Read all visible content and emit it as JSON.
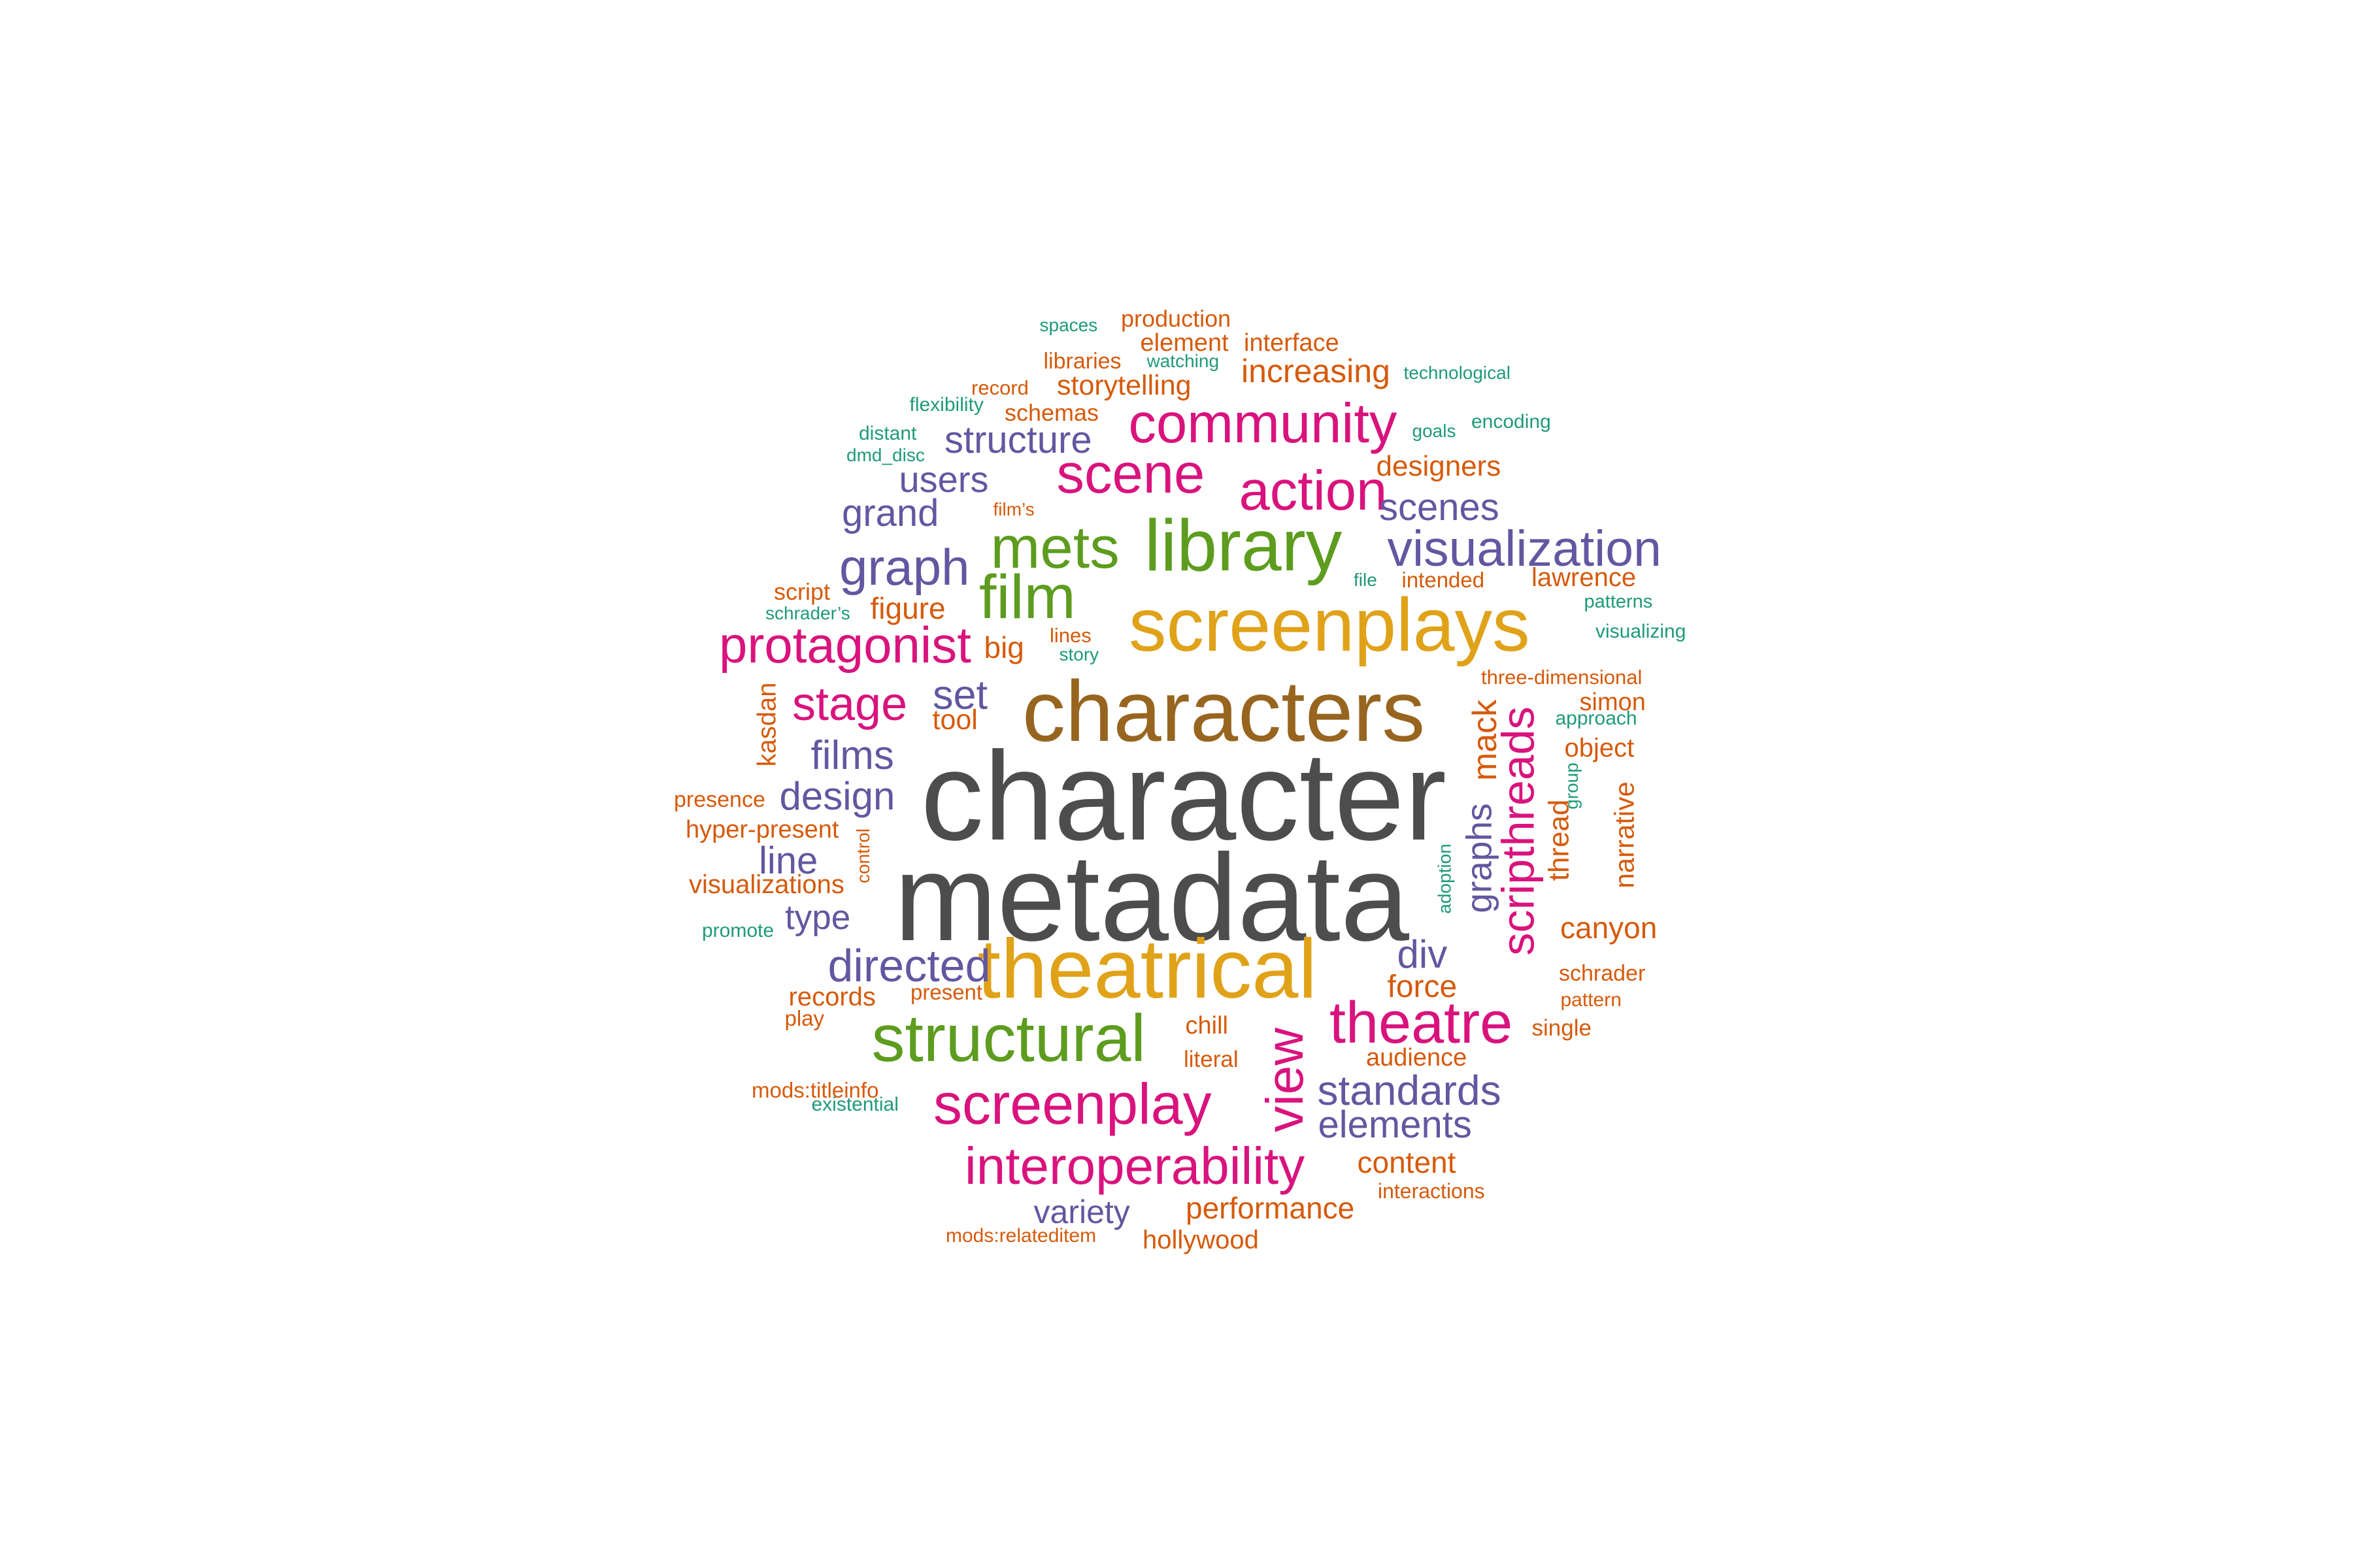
{
  "palette": {
    "gray": "#4d4d4d",
    "brown": "#97651f",
    "gold": "#e0a219",
    "green": "#5d9c1e",
    "magenta": "#d9137d",
    "purple": "#6257a0",
    "orange": "#d65a0b",
    "teal": "#1f9a78"
  },
  "words": [
    {
      "text": "character",
      "color": "gray"
    },
    {
      "text": "metadata",
      "color": "gray"
    },
    {
      "text": "characters",
      "color": "brown"
    },
    {
      "text": "screenplays",
      "color": "gold"
    },
    {
      "text": "theatrical",
      "color": "gold"
    },
    {
      "text": "library",
      "color": "green"
    },
    {
      "text": "mets",
      "color": "green"
    },
    {
      "text": "film",
      "color": "green"
    },
    {
      "text": "structural",
      "color": "green"
    },
    {
      "text": "community",
      "color": "magenta"
    },
    {
      "text": "scene",
      "color": "magenta"
    },
    {
      "text": "action",
      "color": "magenta"
    },
    {
      "text": "protagonist",
      "color": "magenta"
    },
    {
      "text": "stage",
      "color": "magenta"
    },
    {
      "text": "theatre",
      "color": "magenta"
    },
    {
      "text": "screenplay",
      "color": "magenta"
    },
    {
      "text": "interoperability",
      "color": "magenta"
    },
    {
      "text": "view",
      "color": "magenta"
    },
    {
      "text": "scripthreads",
      "color": "magenta"
    },
    {
      "text": "visualization",
      "color": "purple"
    },
    {
      "text": "structure",
      "color": "purple"
    },
    {
      "text": "users",
      "color": "purple"
    },
    {
      "text": "grand",
      "color": "purple"
    },
    {
      "text": "graph",
      "color": "purple"
    },
    {
      "text": "scenes",
      "color": "purple"
    },
    {
      "text": "set",
      "color": "purple"
    },
    {
      "text": "films",
      "color": "purple"
    },
    {
      "text": "design",
      "color": "purple"
    },
    {
      "text": "line",
      "color": "purple"
    },
    {
      "text": "type",
      "color": "purple"
    },
    {
      "text": "directed",
      "color": "purple"
    },
    {
      "text": "div",
      "color": "purple"
    },
    {
      "text": "standards",
      "color": "purple"
    },
    {
      "text": "elements",
      "color": "purple"
    },
    {
      "text": "variety",
      "color": "purple"
    },
    {
      "text": "graphs",
      "color": "purple"
    },
    {
      "text": "production",
      "color": "orange"
    },
    {
      "text": "element",
      "color": "orange"
    },
    {
      "text": "interface",
      "color": "orange"
    },
    {
      "text": "libraries",
      "color": "orange"
    },
    {
      "text": "increasing",
      "color": "orange"
    },
    {
      "text": "record",
      "color": "orange"
    },
    {
      "text": "storytelling",
      "color": "orange"
    },
    {
      "text": "schemas",
      "color": "orange"
    },
    {
      "text": "designers",
      "color": "orange"
    },
    {
      "text": "film’s",
      "color": "orange"
    },
    {
      "text": "intended",
      "color": "orange"
    },
    {
      "text": "lawrence",
      "color": "orange"
    },
    {
      "text": "script",
      "color": "orange"
    },
    {
      "text": "figure",
      "color": "orange"
    },
    {
      "text": "lines",
      "color": "orange"
    },
    {
      "text": "big",
      "color": "orange"
    },
    {
      "text": "three-dimensional",
      "color": "orange"
    },
    {
      "text": "simon",
      "color": "orange"
    },
    {
      "text": "tool",
      "color": "orange"
    },
    {
      "text": "object",
      "color": "orange"
    },
    {
      "text": "presence",
      "color": "orange"
    },
    {
      "text": "hyper-present",
      "color": "orange"
    },
    {
      "text": "visualizations",
      "color": "orange"
    },
    {
      "text": "canyon",
      "color": "orange"
    },
    {
      "text": "force",
      "color": "orange"
    },
    {
      "text": "schrader",
      "color": "orange"
    },
    {
      "text": "records",
      "color": "orange"
    },
    {
      "text": "present",
      "color": "orange"
    },
    {
      "text": "pattern",
      "color": "orange"
    },
    {
      "text": "play",
      "color": "orange"
    },
    {
      "text": "chill",
      "color": "orange"
    },
    {
      "text": "single",
      "color": "orange"
    },
    {
      "text": "audience",
      "color": "orange"
    },
    {
      "text": "literal",
      "color": "orange"
    },
    {
      "text": "mods:titleinfo",
      "color": "orange"
    },
    {
      "text": "content",
      "color": "orange"
    },
    {
      "text": "interactions",
      "color": "orange"
    },
    {
      "text": "performance",
      "color": "orange"
    },
    {
      "text": "hollywood",
      "color": "orange"
    },
    {
      "text": "mods:relateditem",
      "color": "orange"
    },
    {
      "text": "kasdan",
      "color": "orange"
    },
    {
      "text": "control",
      "color": "orange"
    },
    {
      "text": "mack",
      "color": "orange"
    },
    {
      "text": "thread",
      "color": "orange"
    },
    {
      "text": "narrative",
      "color": "orange"
    },
    {
      "text": "spaces",
      "color": "teal"
    },
    {
      "text": "watching",
      "color": "teal"
    },
    {
      "text": "technological",
      "color": "teal"
    },
    {
      "text": "flexibility",
      "color": "teal"
    },
    {
      "text": "goals",
      "color": "teal"
    },
    {
      "text": "encoding",
      "color": "teal"
    },
    {
      "text": "distant",
      "color": "teal"
    },
    {
      "text": "dmd_disc",
      "color": "teal"
    },
    {
      "text": "file",
      "color": "teal"
    },
    {
      "text": "patterns",
      "color": "teal"
    },
    {
      "text": "schrader’s",
      "color": "teal"
    },
    {
      "text": "visualizing",
      "color": "teal"
    },
    {
      "text": "story",
      "color": "teal"
    },
    {
      "text": "approach",
      "color": "teal"
    },
    {
      "text": "promote",
      "color": "teal"
    },
    {
      "text": "existential",
      "color": "teal"
    },
    {
      "text": "group",
      "color": "teal"
    },
    {
      "text": "adoption",
      "color": "teal"
    }
  ]
}
